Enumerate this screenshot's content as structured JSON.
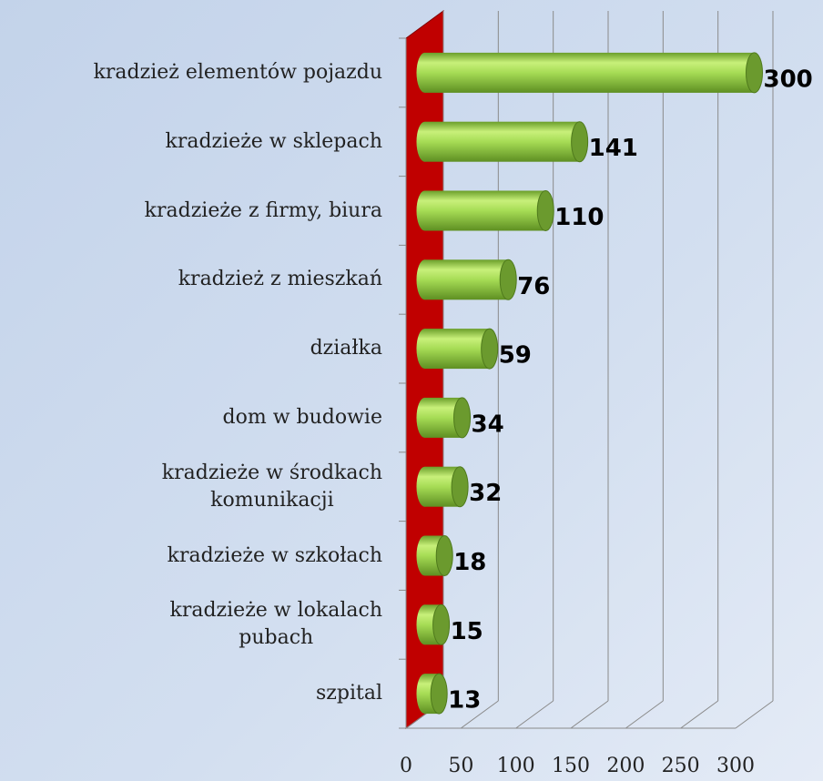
{
  "chart_data": {
    "type": "bar3d",
    "categories": [
      "kradzież elementów pojazdu",
      "kradzieże w sklepach",
      "kradzieże z firmy, biura",
      "kradzież z mieszkań",
      "działka",
      "dom w budowie",
      "kradzieże w środkach\nkomunikacji",
      "kradzieże w szkołach",
      "kradzieże w lokalach\npubach",
      "szpital"
    ],
    "values": [
      300,
      141,
      110,
      76,
      59,
      34,
      32,
      18,
      15,
      13
    ],
    "color": "#92d050",
    "wall_color": "#c00000",
    "xlim": [
      0,
      300
    ],
    "xticks": [
      0,
      50,
      100,
      150,
      200,
      250,
      300
    ],
    "grid": true
  }
}
